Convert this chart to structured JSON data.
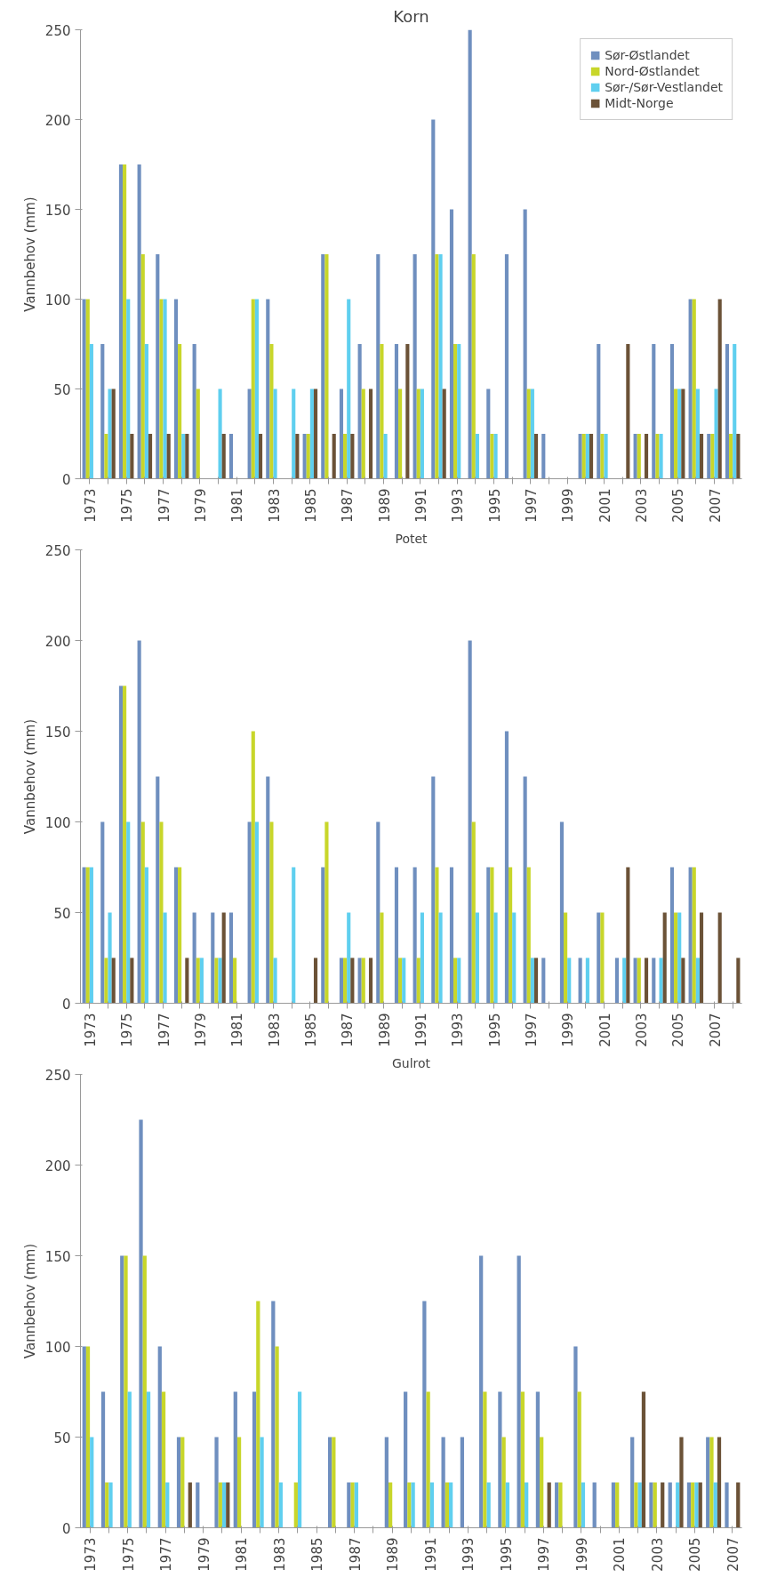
{
  "chart_data": [
    {
      "type": "bar",
      "title": "Korn",
      "ylabel": "Vannbehov (mm)",
      "ylim": [
        0,
        250
      ],
      "yticks": [
        0,
        50,
        100,
        150,
        200,
        250
      ],
      "legend": "top right",
      "categories": [
        "1973",
        null,
        "1975",
        null,
        "1977",
        null,
        "1979",
        null,
        "1981",
        null,
        "1983",
        null,
        "1985",
        null,
        "1987",
        null,
        "1989",
        null,
        "1991",
        null,
        "1993",
        null,
        "1995",
        null,
        "1997",
        null,
        "1999",
        null,
        "2001",
        null,
        "2003",
        null,
        "2005",
        null,
        "2007",
        null
      ],
      "series": [
        {
          "name": "Sør-Østlandet",
          "color": "#6f8fbf",
          "values": [
            100,
            75,
            175,
            175,
            125,
            100,
            75,
            0,
            25,
            50,
            100,
            0,
            25,
            125,
            50,
            75,
            125,
            75,
            125,
            200,
            150,
            250,
            50,
            125,
            150,
            25,
            0,
            25,
            75,
            0,
            25,
            75,
            75,
            100,
            25,
            75
          ]
        },
        {
          "name": "Nord-Østlandet",
          "color": "#c8d62a",
          "values": [
            100,
            25,
            175,
            125,
            100,
            75,
            50,
            0,
            0,
            100,
            75,
            0,
            25,
            125,
            25,
            50,
            75,
            50,
            50,
            125,
            75,
            125,
            25,
            0,
            50,
            0,
            0,
            25,
            25,
            0,
            25,
            25,
            50,
            100,
            25,
            25
          ]
        },
        {
          "name": "Sør-/Sør-Vestlandet",
          "color": "#5fcfef",
          "values": [
            75,
            50,
            100,
            75,
            100,
            25,
            0,
            50,
            0,
            100,
            50,
            50,
            50,
            0,
            100,
            0,
            25,
            0,
            50,
            125,
            75,
            25,
            25,
            0,
            50,
            0,
            0,
            25,
            25,
            0,
            0,
            25,
            50,
            50,
            50,
            75
          ]
        },
        {
          "name": "Midt-Norge",
          "color": "#6b5237",
          "values": [
            0,
            50,
            25,
            25,
            25,
            25,
            0,
            25,
            0,
            25,
            0,
            25,
            50,
            25,
            25,
            50,
            0,
            75,
            0,
            50,
            0,
            0,
            0,
            0,
            25,
            0,
            0,
            25,
            0,
            75,
            25,
            0,
            50,
            25,
            100,
            25
          ]
        }
      ]
    },
    {
      "type": "bar",
      "title": "Potet",
      "ylabel": "Vannbehov (mm)",
      "ylim": [
        0,
        250
      ],
      "yticks": [
        0,
        50,
        100,
        150,
        200,
        250
      ],
      "categories": [
        "1973",
        null,
        "1975",
        null,
        "1977",
        null,
        "1979",
        null,
        "1981",
        null,
        "1983",
        null,
        "1985",
        null,
        "1987",
        null,
        "1989",
        null,
        "1991",
        null,
        "1993",
        null,
        "1995",
        null,
        "1997",
        null,
        "1999",
        null,
        "2001",
        null,
        "2003",
        null,
        "2005",
        null,
        "2007",
        null
      ],
      "series": [
        {
          "color": "#6f8fbf",
          "values": [
            75,
            100,
            175,
            200,
            125,
            75,
            50,
            50,
            50,
            100,
            125,
            0,
            0,
            75,
            25,
            25,
            100,
            75,
            75,
            125,
            75,
            200,
            75,
            150,
            125,
            25,
            100,
            25,
            50,
            25,
            25,
            25,
            75,
            75,
            0,
            0
          ]
        },
        {
          "color": "#c8d62a",
          "values": [
            75,
            25,
            175,
            100,
            100,
            75,
            25,
            25,
            25,
            150,
            100,
            0,
            0,
            100,
            25,
            25,
            50,
            25,
            25,
            75,
            25,
            100,
            75,
            75,
            75,
            0,
            50,
            0,
            50,
            0,
            25,
            0,
            50,
            75,
            0,
            0
          ]
        },
        {
          "color": "#5fcfef",
          "values": [
            75,
            50,
            100,
            75,
            50,
            0,
            25,
            25,
            0,
            100,
            25,
            75,
            0,
            0,
            50,
            0,
            0,
            25,
            50,
            50,
            25,
            50,
            50,
            50,
            25,
            0,
            25,
            25,
            0,
            25,
            0,
            25,
            50,
            25,
            0,
            0
          ]
        },
        {
          "color": "#6b5237",
          "values": [
            0,
            25,
            25,
            0,
            0,
            25,
            0,
            50,
            0,
            0,
            0,
            0,
            25,
            0,
            25,
            25,
            0,
            0,
            0,
            0,
            0,
            0,
            0,
            0,
            25,
            0,
            0,
            0,
            0,
            75,
            25,
            50,
            25,
            50,
            50,
            25
          ]
        }
      ]
    },
    {
      "type": "bar",
      "title": "Gulrot",
      "ylabel": "Vannbehov (mm)",
      "ylim": [
        0,
        250
      ],
      "yticks": [
        0,
        50,
        100,
        150,
        200,
        250
      ],
      "categories": [
        "1973",
        null,
        "1975",
        null,
        "1977",
        null,
        "1979",
        null,
        "1981",
        null,
        "1983",
        null,
        "1985",
        null,
        "1987",
        null,
        "1989",
        null,
        "1991",
        null,
        "1993",
        null,
        "1995",
        null,
        "1997",
        null,
        "1999",
        null,
        "2001",
        null,
        "2003",
        null,
        "2005",
        null,
        "2007"
      ],
      "series": [
        {
          "color": "#6f8fbf",
          "values": [
            100,
            75,
            150,
            225,
            100,
            50,
            25,
            50,
            75,
            75,
            125,
            0,
            0,
            50,
            25,
            0,
            50,
            75,
            125,
            50,
            50,
            150,
            75,
            150,
            75,
            25,
            100,
            25,
            25,
            50,
            25,
            25,
            25,
            50,
            25
          ]
        },
        {
          "color": "#c8d62a",
          "values": [
            100,
            25,
            150,
            150,
            75,
            50,
            0,
            25,
            50,
            125,
            100,
            25,
            0,
            50,
            25,
            0,
            25,
            25,
            75,
            25,
            0,
            75,
            50,
            75,
            50,
            25,
            75,
            0,
            25,
            25,
            25,
            0,
            25,
            50,
            0
          ]
        },
        {
          "color": "#5fcfef",
          "values": [
            50,
            25,
            75,
            75,
            25,
            0,
            0,
            25,
            0,
            50,
            25,
            75,
            0,
            0,
            25,
            0,
            0,
            25,
            25,
            25,
            0,
            25,
            25,
            25,
            0,
            0,
            25,
            0,
            0,
            25,
            0,
            25,
            25,
            25,
            0
          ]
        },
        {
          "color": "#6b5237",
          "values": [
            0,
            0,
            0,
            0,
            0,
            25,
            0,
            25,
            0,
            0,
            0,
            0,
            0,
            0,
            0,
            0,
            0,
            0,
            0,
            0,
            0,
            0,
            0,
            0,
            25,
            0,
            0,
            0,
            0,
            75,
            25,
            50,
            25,
            50,
            25
          ]
        }
      ]
    }
  ]
}
